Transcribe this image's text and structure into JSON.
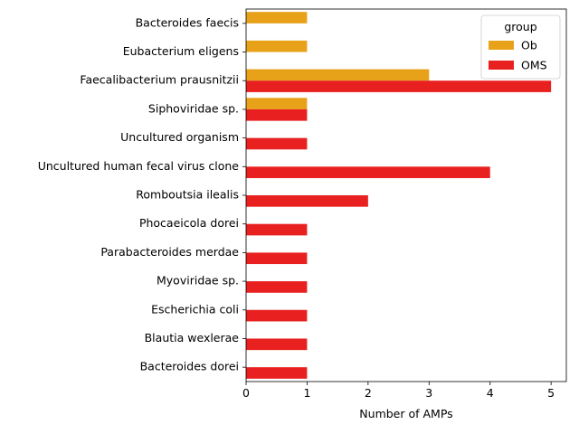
{
  "chart_data": {
    "type": "bar",
    "orientation": "horizontal",
    "categories": [
      "Bacteroides faecis",
      "Eubacterium eligens",
      "Faecalibacterium prausnitzii",
      "Siphoviridae sp.",
      "Uncultured organism",
      "Uncultured human fecal virus clone",
      "Romboutsia ilealis",
      "Phocaeicola dorei",
      "Parabacteroides merdae",
      "Myoviridae sp.",
      "Escherichia coli",
      "Blautia wexlerae",
      "Bacteroides dorei"
    ],
    "series": [
      {
        "name": "Ob",
        "color": "#e8a21a",
        "values": [
          1,
          1,
          3,
          1,
          0,
          0,
          0,
          0,
          0,
          0,
          0,
          0,
          0
        ]
      },
      {
        "name": "OMS",
        "color": "#e8201f",
        "values": [
          0,
          0,
          5,
          1,
          1,
          4,
          2,
          1,
          1,
          1,
          1,
          1,
          1
        ]
      }
    ],
    "xlabel": "Number of AMPs",
    "ylabel": "",
    "xlim": [
      0,
      5.25
    ],
    "xticks": [
      0,
      1,
      2,
      3,
      4,
      5
    ],
    "legend": {
      "title": "group",
      "placement": "top-right"
    },
    "grid": false
  }
}
